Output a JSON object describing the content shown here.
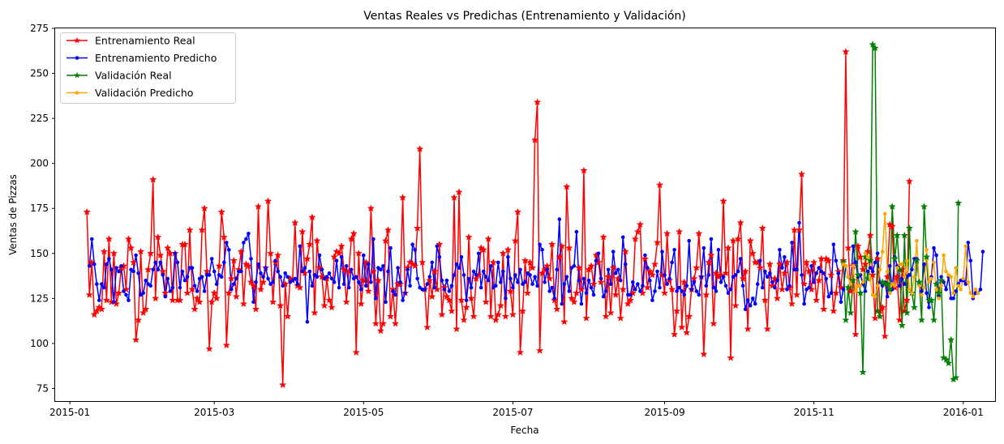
{
  "chart_data": {
    "type": "line",
    "title": "Ventas Reales vs Predichas (Entrenamiento y Validación)",
    "xlabel": "Fecha",
    "ylabel": "Ventas de Pizzas",
    "x_ticks": [
      "2015-01",
      "2015-03",
      "2015-05",
      "2015-07",
      "2015-09",
      "2015-11",
      "2016-01"
    ],
    "y_ticks": [
      75,
      100,
      125,
      150,
      175,
      200,
      225,
      250,
      275
    ],
    "ylim": [
      68,
      275
    ],
    "grid": false,
    "legend_position": "top-left",
    "series": [
      {
        "name": "Entrenamiento Real",
        "color": "#ff0000",
        "marker": "star",
        "start": "2015-01-08",
        "values": [
          173,
          127,
          145,
          116,
          118,
          120,
          119,
          151,
          124,
          158,
          123,
          150,
          122,
          128,
          142,
          143,
          130,
          158,
          153,
          145,
          102,
          113,
          151,
          117,
          119,
          141,
          150,
          191,
          125,
          159,
          149,
          140,
          128,
          153,
          150,
          124,
          150,
          124,
          124,
          155,
          155,
          128,
          163,
          130,
          119,
          125,
          123,
          163,
          175,
          140,
          97,
          123,
          128,
          125,
          143,
          173,
          159,
          99,
          128,
          136,
          146,
          126,
          141,
          151,
          122,
          144,
          143,
          134,
          132,
          119,
          176,
          130,
          134,
          142,
          179,
          150,
          123,
          145,
          149,
          121,
          77,
          133,
          115,
          136,
          135,
          167,
          132,
          131,
          162,
          139,
          147,
          155,
          170,
          117,
          157,
          142,
          137,
          121,
          136,
          124,
          120,
          148,
          151,
          150,
          154,
          141,
          123,
          140,
          158,
          161,
          95,
          150,
          122,
          135,
          145,
          129,
          175,
          140,
          111,
          135,
          107,
          111,
          157,
          163,
          115,
          130,
          111,
          133,
          133,
          181,
          128,
          142,
          145,
          144,
          143,
          164,
          208,
          145,
          130,
          109,
          135,
          126,
          140,
          130,
          155,
          116,
          131,
          126,
          124,
          118,
          181,
          108,
          184,
          124,
          113,
          120,
          159,
          125,
          115,
          136,
          138,
          153,
          152,
          123,
          158,
          115,
          145,
          113,
          116,
          121,
          150,
          115,
          152,
          129,
          116,
          157,
          173,
          95,
          118,
          146,
          128,
          145,
          142,
          213,
          234,
          96,
          139,
          141,
          143,
          136,
          155,
          124,
          119,
          148,
          154,
          112,
          187,
          153,
          125,
          123,
          128,
          142,
          130,
          196,
          114,
          141,
          143,
          133,
          149,
          145,
          134,
          159,
          115,
          137,
          117,
          142,
          127,
          136,
          114,
          130,
          151,
          122,
          124,
          128,
          158,
          162,
          166,
          128,
          147,
          131,
          140,
          138,
          144,
          156,
          188,
          138,
          128,
          161,
          135,
          130,
          105,
          118,
          162,
          109,
          134,
          106,
          115,
          130,
          136,
          142,
          161,
          137,
          94,
          127,
          145,
          149,
          111,
          139,
          137,
          138,
          179,
          139,
          153,
          92,
          157,
          121,
          158,
          167,
          136,
          140,
          108,
          157,
          150,
          145,
          145,
          142,
          164,
          124,
          108,
          144,
          132,
          136,
          125,
          144,
          130,
          139,
          145,
          131,
          122,
          163,
          127,
          163,
          194,
          133,
          145,
          140,
          130,
          145,
          124,
          135,
          147,
          119,
          147,
          146,
          138,
          118,
          128,
          140,
          131,
          146,
          262,
          153,
          129,
          143,
          105,
          154,
          148,
          141,
          144,
          151,
          160,
          138,
          114,
          147,
          118,
          120,
          104,
          137,
          166,
          165,
          131,
          137,
          113,
          141,
          118,
          124,
          190
        ]
      },
      {
        "name": "Entrenamiento Predicho",
        "color": "#0000ff",
        "marker": "dot",
        "start": "2015-01-09",
        "values": [
          143,
          158,
          144,
          133,
          124,
          133,
          131,
          144,
          147,
          141,
          123,
          142,
          140,
          143,
          129,
          127,
          124,
          141,
          140,
          149,
          139,
          127,
          128,
          135,
          133,
          132,
          141,
          145,
          141,
          145,
          138,
          126,
          136,
          129,
          131,
          150,
          145,
          131,
          140,
          135,
          137,
          142,
          142,
          132,
          129,
          136,
          137,
          129,
          138,
          138,
          147,
          140,
          133,
          138,
          137,
          145,
          156,
          152,
          130,
          133,
          136,
          140,
          140,
          156,
          158,
          161,
          147,
          123,
          134,
          144,
          139,
          137,
          142,
          136,
          133,
          134,
          146,
          140,
          137,
          132,
          139,
          137,
          134,
          135,
          136,
          133,
          154,
          140,
          142,
          112,
          140,
          132,
          138,
          137,
          149,
          141,
          136,
          137,
          139,
          136,
          134,
          146,
          131,
          148,
          133,
          143,
          131,
          141,
          136,
          137,
          134,
          130,
          149,
          132,
          144,
          134,
          158,
          125,
          142,
          141,
          143,
          123,
          140,
          153,
          129,
          127,
          142,
          134,
          124,
          128,
          141,
          132,
          155,
          152,
          136,
          131,
          130,
          130,
          133,
          137,
          145,
          131,
          154,
          148,
          135,
          130,
          135,
          129,
          132,
          138,
          144,
          142,
          148,
          138,
          124,
          136,
          131,
          140,
          138,
          150,
          131,
          140,
          137,
          135,
          143,
          131,
          132,
          145,
          134,
          140,
          125,
          148,
          136,
          131,
          138,
          134,
          141,
          133,
          134,
          139,
          138,
          133,
          137,
          132,
          155,
          152,
          134,
          141,
          129,
          131,
          125,
          141,
          169,
          122,
          133,
          137,
          129,
          142,
          143,
          162,
          135,
          122,
          136,
          128,
          135,
          131,
          127,
          146,
          150,
          136,
          126,
          129,
          141,
          133,
          151,
          139,
          141,
          135,
          159,
          144,
          127,
          127,
          134,
          130,
          133,
          129,
          132,
          149,
          142,
          135,
          124,
          129,
          140,
          131,
          151,
          138,
          133,
          136,
          145,
          152,
          129,
          131,
          129,
          127,
          132,
          157,
          130,
          134,
          129,
          127,
          137,
          153,
          132,
          138,
          158,
          131,
          129,
          152,
          134,
          137,
          132,
          128,
          130,
          137,
          138,
          140,
          147,
          132,
          119,
          124,
          121,
          125,
          122,
          133,
          146,
          131,
          140,
          137,
          139,
          134,
          131,
          135,
          152,
          142,
          148,
          130,
          132,
          156,
          141,
          141,
          167,
          138,
          122,
          130,
          131,
          143,
          134,
          139,
          142,
          140,
          139,
          136,
          126,
          128,
          155,
          146,
          139,
          123,
          130,
          143,
          137,
          133,
          154,
          145,
          137,
          138,
          133,
          129,
          140,
          142,
          140,
          145,
          150,
          134,
          132,
          134,
          126,
          143,
          130,
          148,
          143,
          132,
          136,
          133,
          137,
          138,
          141,
          147,
          147,
          134,
          129,
          144,
          128,
          120,
          137,
          153,
          149,
          126,
          137,
          134,
          130,
          137,
          125,
          125,
          129,
          133,
          135,
          135,
          133,
          156,
          146,
          125,
          128,
          128,
          130,
          151
        ]
      },
      {
        "name": "Validación Real",
        "color": "#008000",
        "marker": "star",
        "start": "2015-11-13",
        "values": [
          145,
          113,
          131,
          117,
          135,
          162,
          138,
          128,
          84,
          148,
          136,
          146,
          266,
          264,
          118,
          115,
          134,
          133,
          133,
          130,
          176,
          147,
          160,
          141,
          110,
          160,
          117,
          164,
          128,
          120,
          146,
          134,
          113,
          176,
          148,
          124,
          124,
          113,
          133,
          128,
          135,
          92,
          91,
          89,
          102,
          80,
          81,
          178
        ]
      },
      {
        "name": "Validación Predicho",
        "color": "#ffa500",
        "marker": "dot",
        "start": "2015-11-13",
        "values": [
          144,
          143,
          137,
          133,
          143,
          129,
          132,
          132,
          134,
          150,
          148,
          136,
          127,
          126,
          132,
          141,
          151,
          172,
          140,
          128,
          133,
          132,
          142,
          144,
          144,
          137,
          146,
          130,
          128,
          137,
          157,
          132,
          127,
          131,
          152,
          134,
          136,
          145,
          130,
          125,
          132,
          149,
          140,
          138,
          137,
          128,
          142,
          132,
          130,
          136,
          154,
          134,
          128,
          126,
          130,
          128
        ]
      }
    ]
  }
}
